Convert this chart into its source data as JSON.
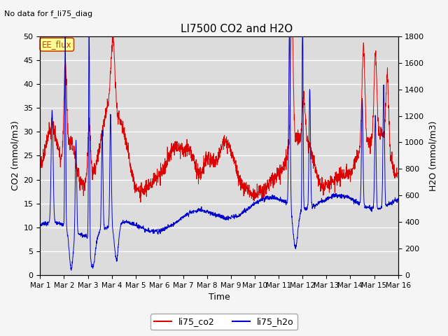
{
  "title": "LI7500 CO2 and H2O",
  "subtitle": "No data for f_li75_diag",
  "xlabel": "Time",
  "ylabel_left": "CO2 (mmol/m3)",
  "ylabel_right": "H2O (mmol/m3)",
  "ylim_left": [
    0,
    50
  ],
  "ylim_right": [
    0,
    1800
  ],
  "yticks_left": [
    0,
    5,
    10,
    15,
    20,
    25,
    30,
    35,
    40,
    45,
    50
  ],
  "yticks_right": [
    0,
    200,
    400,
    600,
    800,
    1000,
    1200,
    1400,
    1600,
    1800
  ],
  "xtick_labels": [
    "Mar 1",
    "Mar 2",
    "Mar 3",
    "Mar 4",
    "Mar 5",
    "Mar 6",
    "Mar 7",
    "Mar 8",
    "Mar 9",
    "Mar 10",
    "Mar 11",
    "Mar 12",
    "Mar 13",
    "Mar 14",
    "Mar 15",
    "Mar 16"
  ],
  "color_co2": "#dd0000",
  "color_h2o": "#0000cc",
  "legend_label_co2": "li75_co2",
  "legend_label_h2o": "li75_h2o",
  "annotation_box": "EE_flux",
  "plot_bg_color": "#dcdcdc",
  "fig_bg_color": "#f5f5f5",
  "grid_color": "#ffffff",
  "n_points": 2000
}
